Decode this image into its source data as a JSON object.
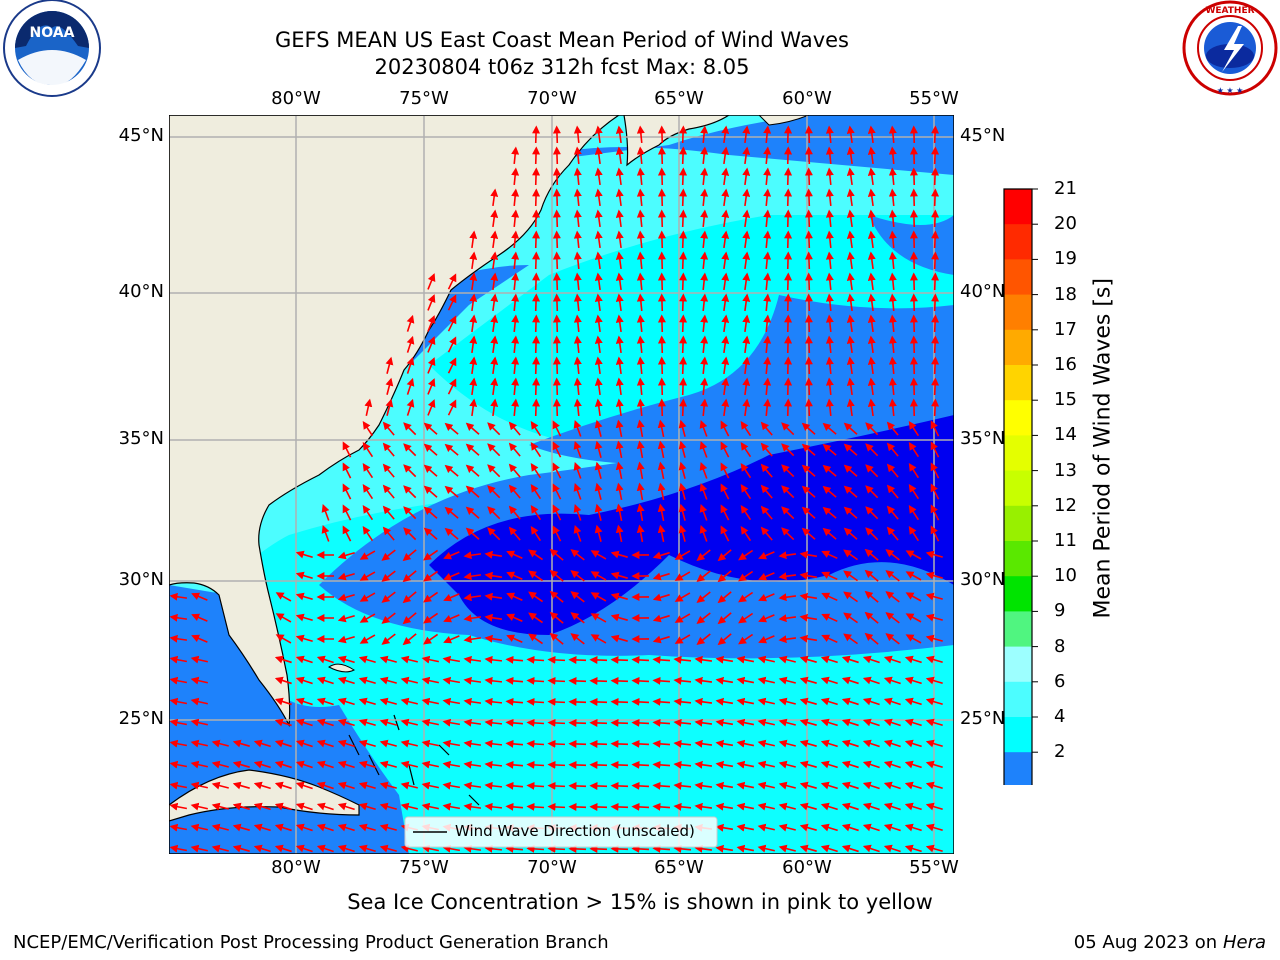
{
  "header": {
    "title_line1": "GEFS MEAN US East Coast Mean Period of Wind Waves",
    "title_line2": "20230804 t06z 312h fcst   Max: 8.05"
  },
  "logos": {
    "left": {
      "name": "noaa-logo",
      "text": "NOAA",
      "ring_text": "NATIONAL OCEANIC AND ATMOSPHERIC ADMINISTRATION · U.S. DEPARTMENT OF COMMERCE"
    },
    "right": {
      "name": "nws-logo",
      "ring_text": "NATIONAL WEATHER SERVICE"
    }
  },
  "map": {
    "lon_labels": [
      "80°W",
      "75°W",
      "70°W",
      "65°W",
      "60°W",
      "55°W"
    ],
    "lat_labels": [
      "45°N",
      "40°N",
      "35°N",
      "30°N",
      "25°N"
    ],
    "legend_label": "Wind Wave Direction (unscaled)",
    "colors": {
      "land": "#efedde",
      "water_2_4": "#1e82fb",
      "water_0_2": "#0000f0",
      "water_4_6": "#02ffff",
      "water_6_8": "#4cfdff",
      "arrow": "#ff0000",
      "grid": "#b0b0b0"
    }
  },
  "colorbar": {
    "label": "Mean Period of Wind Waves [s]",
    "ticks": [
      "21",
      "20",
      "19",
      "18",
      "17",
      "16",
      "15",
      "14",
      "13",
      "12",
      "11",
      "10",
      "9",
      "8",
      "6",
      "4",
      "2"
    ],
    "colors": [
      "#ff0000",
      "#ff2a00",
      "#ff5500",
      "#ff7f00",
      "#ffaa00",
      "#ffd400",
      "#ffff00",
      "#e4ff00",
      "#c8ff00",
      "#98f000",
      "#5ae800",
      "#00e400",
      "#50f580",
      "#9dffff",
      "#4cfdff",
      "#02ffff",
      "#1e82fb"
    ],
    "extend_color": "#0000f0"
  },
  "footer": {
    "subtitle": "Sea Ice Concentration > 15% is shown in pink to yellow",
    "credit": "NCEP/EMC/Verification Post Processing Product Generation Branch",
    "date": "05 Aug 2023 on",
    "machine": "Hera"
  }
}
